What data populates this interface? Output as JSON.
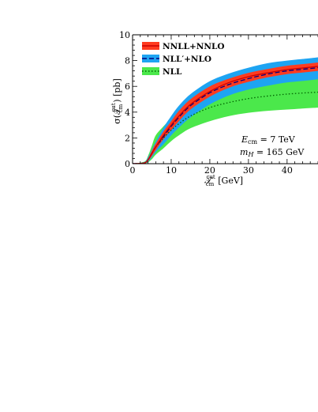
{
  "chart_data": {
    "type": "line",
    "xlabel": "𝒯cm^cut [GeV]",
    "xlabel_main": "𝒯",
    "xlabel_sub": "cm",
    "xlabel_sup": "cut",
    "xlabel_unit": "[GeV]",
    "ylabel": "σ(𝒯cm^cut) [pb]",
    "ylabel_main": "σ(𝒯",
    "ylabel_sub": "cm",
    "ylabel_sup": "cut",
    "ylabel_unit": ") [pb]",
    "xlim": [
      0,
      48
    ],
    "ylim": [
      0,
      10
    ],
    "x_ticks": [
      0,
      10,
      20,
      30,
      40
    ],
    "y_ticks": [
      0,
      2,
      4,
      6,
      8,
      10
    ],
    "grid": false,
    "legend_position": "top-left",
    "annotations": [
      "E_cm = 7 TeV",
      "m_H = 165 GeV"
    ],
    "annotation_lines": [
      {
        "main": "E",
        "sub": "cm",
        "rest": " = 7 TeV"
      },
      {
        "main": "m",
        "sub": "H",
        "rest": " = 165 GeV"
      }
    ],
    "series": [
      {
        "name": "NNLL+NNLO",
        "style": "solid",
        "color": "#cc0000",
        "band_color": "#ff3b1f",
        "x": [
          0,
          3,
          4,
          5,
          6,
          8,
          10,
          12,
          15,
          20,
          25,
          30,
          35,
          40,
          45,
          48
        ],
        "y": [
          0,
          0.05,
          0.3,
          0.8,
          1.3,
          2.2,
          3.0,
          3.7,
          4.6,
          5.6,
          6.3,
          6.75,
          7.05,
          7.3,
          7.45,
          7.55
        ],
        "lower": [
          0,
          0.03,
          0.2,
          0.6,
          1.05,
          1.9,
          2.6,
          3.3,
          4.2,
          5.2,
          5.9,
          6.35,
          6.7,
          6.95,
          7.1,
          7.2
        ],
        "upper": [
          0,
          0.1,
          0.4,
          1.0,
          1.55,
          2.5,
          3.3,
          4.1,
          5.0,
          6.0,
          6.6,
          7.05,
          7.35,
          7.6,
          7.75,
          7.85
        ]
      },
      {
        "name": "NLL′+NLO",
        "style": "dashed",
        "color": "#000080",
        "band_color": "#1ea4f2",
        "x": [
          0,
          3,
          4,
          5,
          6,
          8,
          10,
          12,
          15,
          20,
          25,
          30,
          35,
          40,
          45,
          48
        ],
        "y": [
          0,
          0.05,
          0.3,
          0.8,
          1.3,
          2.1,
          2.9,
          3.6,
          4.5,
          5.5,
          6.15,
          6.6,
          6.95,
          7.2,
          7.35,
          7.45
        ],
        "lower": [
          0,
          0.02,
          0.15,
          0.5,
          0.9,
          1.5,
          2.2,
          2.8,
          3.6,
          4.6,
          5.3,
          5.75,
          6.05,
          6.3,
          6.45,
          6.55
        ],
        "upper": [
          0,
          0.12,
          0.5,
          1.1,
          1.7,
          2.8,
          3.7,
          4.5,
          5.4,
          6.4,
          7.0,
          7.45,
          7.8,
          8.0,
          8.15,
          8.25
        ]
      },
      {
        "name": "NLL",
        "style": "dotted",
        "color": "#006400",
        "band_color": "#4be84b",
        "x": [
          0,
          3,
          4,
          5,
          6,
          8,
          10,
          12,
          15,
          20,
          25,
          30,
          35,
          40,
          45,
          48
        ],
        "y": [
          0,
          0.05,
          0.3,
          0.8,
          1.3,
          2.0,
          2.6,
          3.1,
          3.7,
          4.35,
          4.75,
          5.05,
          5.25,
          5.4,
          5.5,
          5.55
        ],
        "lower": [
          0,
          0.02,
          0.1,
          0.35,
          0.7,
          1.2,
          1.75,
          2.2,
          2.75,
          3.3,
          3.7,
          3.95,
          4.1,
          4.2,
          4.3,
          4.35
        ],
        "upper": [
          0,
          0.15,
          0.6,
          1.4,
          2.2,
          2.9,
          3.5,
          4.0,
          4.75,
          5.5,
          5.95,
          6.2,
          6.4,
          6.55,
          6.65,
          6.7
        ]
      }
    ]
  }
}
